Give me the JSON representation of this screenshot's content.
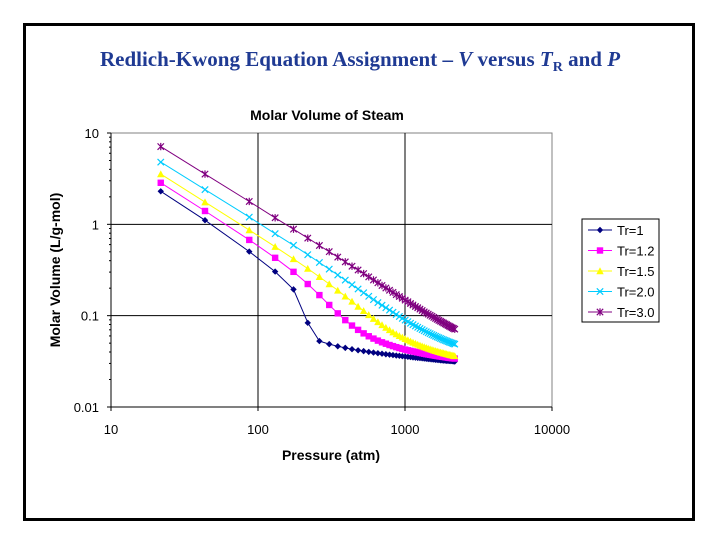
{
  "slide": {
    "title_main": "Redlich-Kwong Equation Assignment – ",
    "title_v": "V",
    "title_versus": " versus ",
    "title_t": "T",
    "title_r": "R",
    "title_and": " and ",
    "title_p": "P"
  },
  "chart_data": {
    "type": "line",
    "title": "Molar Volume of Steam",
    "xlabel": "Pressure (atm)",
    "ylabel": "Molar Volume (L/g-mol)",
    "xscale": "log",
    "yscale": "log",
    "xlim": [
      10,
      10000
    ],
    "ylim": [
      0.01,
      10
    ],
    "x_ticks": [
      10,
      100,
      1000,
      10000
    ],
    "x_tick_labels": [
      "10",
      "100",
      "1000",
      "10000"
    ],
    "y_ticks": [
      10,
      1,
      0.1,
      0.01
    ],
    "y_tick_labels": [
      "10",
      "1",
      "0.1",
      "0.01"
    ],
    "grid": "major",
    "legend_position": "right",
    "series": [
      {
        "name": "Tr=1",
        "color": "#000080",
        "marker": "diamond",
        "x": [
          21.8,
          43.6,
          87.2,
          130.8,
          174.4,
          218.0,
          261.6,
          305.2,
          348.8,
          392.4,
          436.0,
          479.6,
          523.2,
          566.8,
          610.4,
          654.0,
          697.6,
          741.2,
          784.8,
          828.4,
          872.0,
          915.6,
          959.2,
          1002.8,
          1046.4,
          1090.0,
          1133.6,
          1177.2,
          1220.8,
          1264.4,
          1308.0,
          1351.6,
          1395.2,
          1438.8,
          1482.4,
          1526.0,
          1569.6,
          1613.2,
          1656.8,
          1700.4,
          1744.0,
          1787.6,
          1831.2,
          1874.8,
          1918.4,
          1962.0,
          2005.6,
          2049.2,
          2092.8,
          2136.4,
          2180.0
        ],
        "y": [
          2.3,
          1.11,
          0.503,
          0.304,
          0.194,
          0.0835,
          0.0527,
          0.0488,
          0.0462,
          0.0444,
          0.0429,
          0.0418,
          0.0409,
          0.0401,
          0.0394,
          0.0388,
          0.0383,
          0.0378,
          0.0374,
          0.037,
          0.0366,
          0.0363,
          0.036,
          0.0357,
          0.0354,
          0.0352,
          0.0349,
          0.0347,
          0.0345,
          0.0343,
          0.0341,
          0.0339,
          0.0337,
          0.0335,
          0.0334,
          0.0332,
          0.0331,
          0.0329,
          0.0328,
          0.0327,
          0.0325,
          0.0324,
          0.0323,
          0.0322,
          0.0321,
          0.032,
          0.0319,
          0.0318,
          0.0317,
          0.0316,
          0.0315
        ]
      },
      {
        "name": "Tr=1.2",
        "color": "#ff00ff",
        "marker": "square",
        "x": [
          21.8,
          43.6,
          87.2,
          130.8,
          174.4,
          218.0,
          261.6,
          305.2,
          348.8,
          392.4,
          436.0,
          479.6,
          523.2,
          566.8,
          610.4,
          654.0,
          697.6,
          741.2,
          784.8,
          828.4,
          872.0,
          915.6,
          959.2,
          1002.8,
          1046.4,
          1090.0,
          1133.6,
          1177.2,
          1220.8,
          1264.4,
          1308.0,
          1351.6,
          1395.2,
          1438.8,
          1482.4,
          1526.0,
          1569.6,
          1613.2,
          1656.8,
          1700.4,
          1744.0,
          1787.6,
          1831.2,
          1874.8,
          1918.4,
          1962.0,
          2005.6,
          2049.2,
          2092.8,
          2136.4,
          2180.0
        ],
        "y": [
          2.85,
          1.4,
          0.675,
          0.43,
          0.302,
          0.222,
          0.168,
          0.131,
          0.106,
          0.0893,
          0.0779,
          0.0699,
          0.064,
          0.0595,
          0.0561,
          0.0533,
          0.0511,
          0.0493,
          0.0477,
          0.0464,
          0.0452,
          0.0442,
          0.0433,
          0.0425,
          0.0418,
          0.0412,
          0.0406,
          0.0401,
          0.0396,
          0.0391,
          0.0387,
          0.0383,
          0.0379,
          0.0376,
          0.0373,
          0.037,
          0.0367,
          0.0364,
          0.0362,
          0.0359,
          0.0357,
          0.0355,
          0.0353,
          0.0351,
          0.0349,
          0.0347,
          0.0345,
          0.0344,
          0.0342,
          0.0341,
          0.0339
        ]
      },
      {
        "name": "Tr=1.5",
        "color": "#ffff00",
        "marker": "triangle",
        "x": [
          21.8,
          43.6,
          87.2,
          130.8,
          174.4,
          218.0,
          261.6,
          305.2,
          348.8,
          392.4,
          436.0,
          479.6,
          523.2,
          566.8,
          610.4,
          654.0,
          697.6,
          741.2,
          784.8,
          828.4,
          872.0,
          915.6,
          959.2,
          1002.8,
          1046.4,
          1090.0,
          1133.6,
          1177.2,
          1220.8,
          1264.4,
          1308.0,
          1351.6,
          1395.2,
          1438.8,
          1482.4,
          1526.0,
          1569.6,
          1613.2,
          1656.8,
          1700.4,
          1744.0,
          1787.6,
          1831.2,
          1874.8,
          1918.4,
          1962.0,
          2005.6,
          2049.2,
          2092.8,
          2136.4,
          2180.0
        ],
        "y": [
          3.55,
          1.75,
          0.865,
          0.569,
          0.418,
          0.328,
          0.266,
          0.222,
          0.189,
          0.163,
          0.143,
          0.126,
          0.113,
          0.102,
          0.0928,
          0.0853,
          0.0791,
          0.074,
          0.0697,
          0.066,
          0.0629,
          0.0602,
          0.0579,
          0.0558,
          0.054,
          0.0524,
          0.0509,
          0.0496,
          0.0484,
          0.0473,
          0.0463,
          0.0454,
          0.0446,
          0.0438,
          0.0431,
          0.0424,
          0.0418,
          0.0412,
          0.0407,
          0.0402,
          0.0397,
          0.0393,
          0.0389,
          0.0385,
          0.0381,
          0.0377,
          0.0374,
          0.0371,
          0.0368,
          0.0365,
          0.0362
        ]
      },
      {
        "name": "Tr=2.0",
        "color": "#00ccff",
        "marker": "x",
        "x": [
          21.8,
          43.6,
          87.2,
          130.8,
          174.4,
          218.0,
          261.6,
          305.2,
          348.8,
          392.4,
          436.0,
          479.6,
          523.2,
          566.8,
          610.4,
          654.0,
          697.6,
          741.2,
          784.8,
          828.4,
          872.0,
          915.6,
          959.2,
          1002.8,
          1046.4,
          1090.0,
          1133.6,
          1177.2,
          1220.8,
          1264.4,
          1308.0,
          1351.6,
          1395.2,
          1438.8,
          1482.4,
          1526.0,
          1569.6,
          1613.2,
          1656.8,
          1700.4,
          1744.0,
          1787.6,
          1831.2,
          1874.8,
          1918.4,
          1962.0,
          2005.6,
          2049.2,
          2092.8,
          2136.4,
          2180.0
        ],
        "y": [
          4.8,
          2.4,
          1.2,
          0.79,
          0.59,
          0.465,
          0.382,
          0.323,
          0.279,
          0.245,
          0.218,
          0.196,
          0.178,
          0.163,
          0.15,
          0.139,
          0.13,
          0.122,
          0.115,
          0.109,
          0.103,
          0.0979,
          0.0935,
          0.0895,
          0.0859,
          0.0827,
          0.0798,
          0.0771,
          0.0746,
          0.0724,
          0.0703,
          0.0684,
          0.0666,
          0.065,
          0.0635,
          0.0621,
          0.0608,
          0.0595,
          0.0584,
          0.0573,
          0.0563,
          0.0553,
          0.0544,
          0.0536,
          0.0528,
          0.052,
          0.0513,
          0.0506,
          0.05,
          0.0494,
          0.0488
        ]
      },
      {
        "name": "Tr=3.0",
        "color": "#800080",
        "marker": "star",
        "x": [
          21.8,
          43.6,
          87.2,
          130.8,
          174.4,
          218.0,
          261.6,
          305.2,
          348.8,
          392.4,
          436.0,
          479.6,
          523.2,
          566.8,
          610.4,
          654.0,
          697.6,
          741.2,
          784.8,
          828.4,
          872.0,
          915.6,
          959.2,
          1002.8,
          1046.4,
          1090.0,
          1133.6,
          1177.2,
          1220.8,
          1264.4,
          1308.0,
          1351.6,
          1395.2,
          1438.8,
          1482.4,
          1526.0,
          1569.6,
          1613.2,
          1656.8,
          1700.4,
          1744.0,
          1787.6,
          1831.2,
          1874.8,
          1918.4,
          1962.0,
          2005.6,
          2049.2,
          2092.8,
          2136.4,
          2180.0
        ],
        "y": [
          7.1,
          3.55,
          1.78,
          1.18,
          0.885,
          0.706,
          0.587,
          0.502,
          0.438,
          0.388,
          0.348,
          0.316,
          0.289,
          0.266,
          0.246,
          0.229,
          0.214,
          0.201,
          0.19,
          0.18,
          0.17,
          0.162,
          0.155,
          0.148,
          0.142,
          0.136,
          0.131,
          0.126,
          0.122,
          0.118,
          0.114,
          0.11,
          0.107,
          0.104,
          0.101,
          0.0984,
          0.0958,
          0.0934,
          0.0911,
          0.0889,
          0.0869,
          0.0849,
          0.0831,
          0.0813,
          0.0797,
          0.0781,
          0.0766,
          0.0752,
          0.0738,
          0.0725,
          0.0712
        ]
      }
    ]
  }
}
